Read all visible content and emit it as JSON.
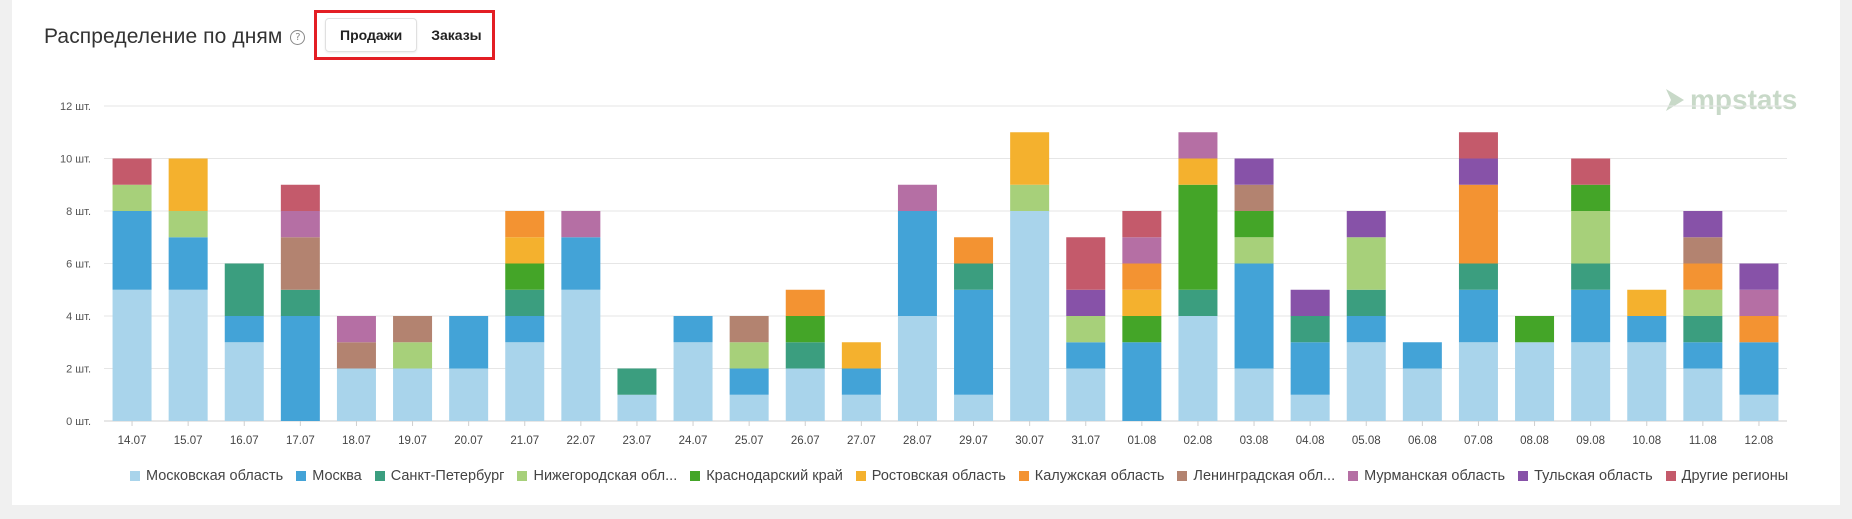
{
  "header": {
    "title": "Распределение по дням",
    "help_icon": "question-circle-icon",
    "tabs": [
      {
        "label": "Продажи",
        "active": true
      },
      {
        "label": "Заказы",
        "active": false
      }
    ]
  },
  "logo": {
    "text": "mpstats"
  },
  "chart_data": {
    "type": "bar",
    "stacked": true,
    "ylim": [
      0,
      12
    ],
    "yticks": [
      0,
      2,
      4,
      6,
      8,
      10,
      12
    ],
    "ytick_labels": [
      "0 шт.",
      "2 шт.",
      "4 шт.",
      "6 шт.",
      "8 шт.",
      "10 шт.",
      "12 шт."
    ],
    "grid": true,
    "legend_position": "bottom",
    "categories": [
      "14.07",
      "15.07",
      "16.07",
      "17.07",
      "18.07",
      "19.07",
      "20.07",
      "21.07",
      "22.07",
      "23.07",
      "24.07",
      "25.07",
      "26.07",
      "27.07",
      "28.07",
      "29.07",
      "30.07",
      "31.07",
      "01.08",
      "02.08",
      "03.08",
      "04.08",
      "05.08",
      "06.08",
      "07.08",
      "08.08",
      "09.08",
      "10.08",
      "11.08",
      "12.08"
    ],
    "series": [
      {
        "name": "Московская область",
        "color": "#a9d4eb",
        "values": [
          5,
          5,
          3,
          0,
          2,
          2,
          2,
          3,
          5,
          1,
          3,
          1,
          2,
          1,
          4,
          1,
          8,
          2,
          0,
          4,
          2,
          1,
          3,
          2,
          3,
          3,
          3,
          3,
          2,
          1
        ]
      },
      {
        "name": "Москва",
        "color": "#43a3d7",
        "values": [
          3,
          2,
          1,
          4,
          0,
          0,
          2,
          1,
          2,
          0,
          1,
          1,
          0,
          1,
          4,
          4,
          0,
          1,
          3,
          0,
          4,
          2,
          1,
          1,
          2,
          0,
          2,
          1,
          1,
          2
        ]
      },
      {
        "name": "Санкт-Петербург",
        "color": "#3b9e7f",
        "values": [
          0,
          0,
          2,
          1,
          0,
          0,
          0,
          1,
          0,
          1,
          0,
          0,
          1,
          0,
          0,
          1,
          0,
          0,
          0,
          1,
          0,
          1,
          1,
          0,
          1,
          0,
          1,
          0,
          1,
          0
        ]
      },
      {
        "name": "Нижегородская обл...",
        "color": "#a7d07a",
        "values": [
          1,
          1,
          0,
          0,
          0,
          1,
          0,
          0,
          0,
          0,
          0,
          1,
          0,
          0,
          0,
          0,
          1,
          1,
          0,
          0,
          1,
          0,
          2,
          0,
          0,
          0,
          2,
          0,
          1,
          0
        ]
      },
      {
        "name": "Краснодарский край",
        "color": "#44a528",
        "values": [
          0,
          0,
          0,
          0,
          0,
          0,
          0,
          1,
          0,
          0,
          0,
          0,
          1,
          0,
          0,
          0,
          0,
          0,
          1,
          4,
          1,
          0,
          0,
          0,
          0,
          1,
          1,
          0,
          0,
          0
        ]
      },
      {
        "name": "Ростовская область",
        "color": "#f4b12e",
        "values": [
          0,
          2,
          0,
          0,
          0,
          0,
          0,
          1,
          0,
          0,
          0,
          0,
          0,
          1,
          0,
          0,
          2,
          0,
          1,
          1,
          0,
          0,
          0,
          0,
          0,
          0,
          0,
          1,
          0,
          0
        ]
      },
      {
        "name": "Калужская область",
        "color": "#f39332",
        "values": [
          0,
          0,
          0,
          0,
          0,
          0,
          0,
          1,
          0,
          0,
          0,
          0,
          1,
          0,
          0,
          1,
          0,
          0,
          1,
          0,
          0,
          0,
          0,
          0,
          3,
          0,
          0,
          0,
          1,
          1
        ]
      },
      {
        "name": "Ленинградская обл...",
        "color": "#b38370",
        "values": [
          0,
          0,
          0,
          2,
          1,
          1,
          0,
          0,
          0,
          0,
          0,
          1,
          0,
          0,
          0,
          0,
          0,
          0,
          0,
          0,
          1,
          0,
          0,
          0,
          0,
          0,
          0,
          0,
          1,
          0
        ]
      },
      {
        "name": "Мурманская область",
        "color": "#b56fa4",
        "values": [
          0,
          0,
          0,
          1,
          1,
          0,
          0,
          0,
          1,
          0,
          0,
          0,
          0,
          0,
          1,
          0,
          0,
          0,
          1,
          1,
          0,
          0,
          0,
          0,
          0,
          0,
          0,
          0,
          0,
          1
        ]
      },
      {
        "name": "Тульская область",
        "color": "#8752a8",
        "values": [
          0,
          0,
          0,
          0,
          0,
          0,
          0,
          0,
          0,
          0,
          0,
          0,
          0,
          0,
          0,
          0,
          0,
          1,
          0,
          0,
          1,
          1,
          1,
          0,
          1,
          0,
          0,
          0,
          1,
          1
        ]
      },
      {
        "name": "Другие регионы",
        "color": "#c45a6b",
        "values": [
          1,
          0,
          0,
          1,
          0,
          0,
          0,
          0,
          0,
          0,
          0,
          0,
          0,
          0,
          0,
          0,
          0,
          2,
          1,
          0,
          0,
          0,
          0,
          0,
          1,
          0,
          1,
          0,
          0,
          0
        ]
      }
    ]
  }
}
